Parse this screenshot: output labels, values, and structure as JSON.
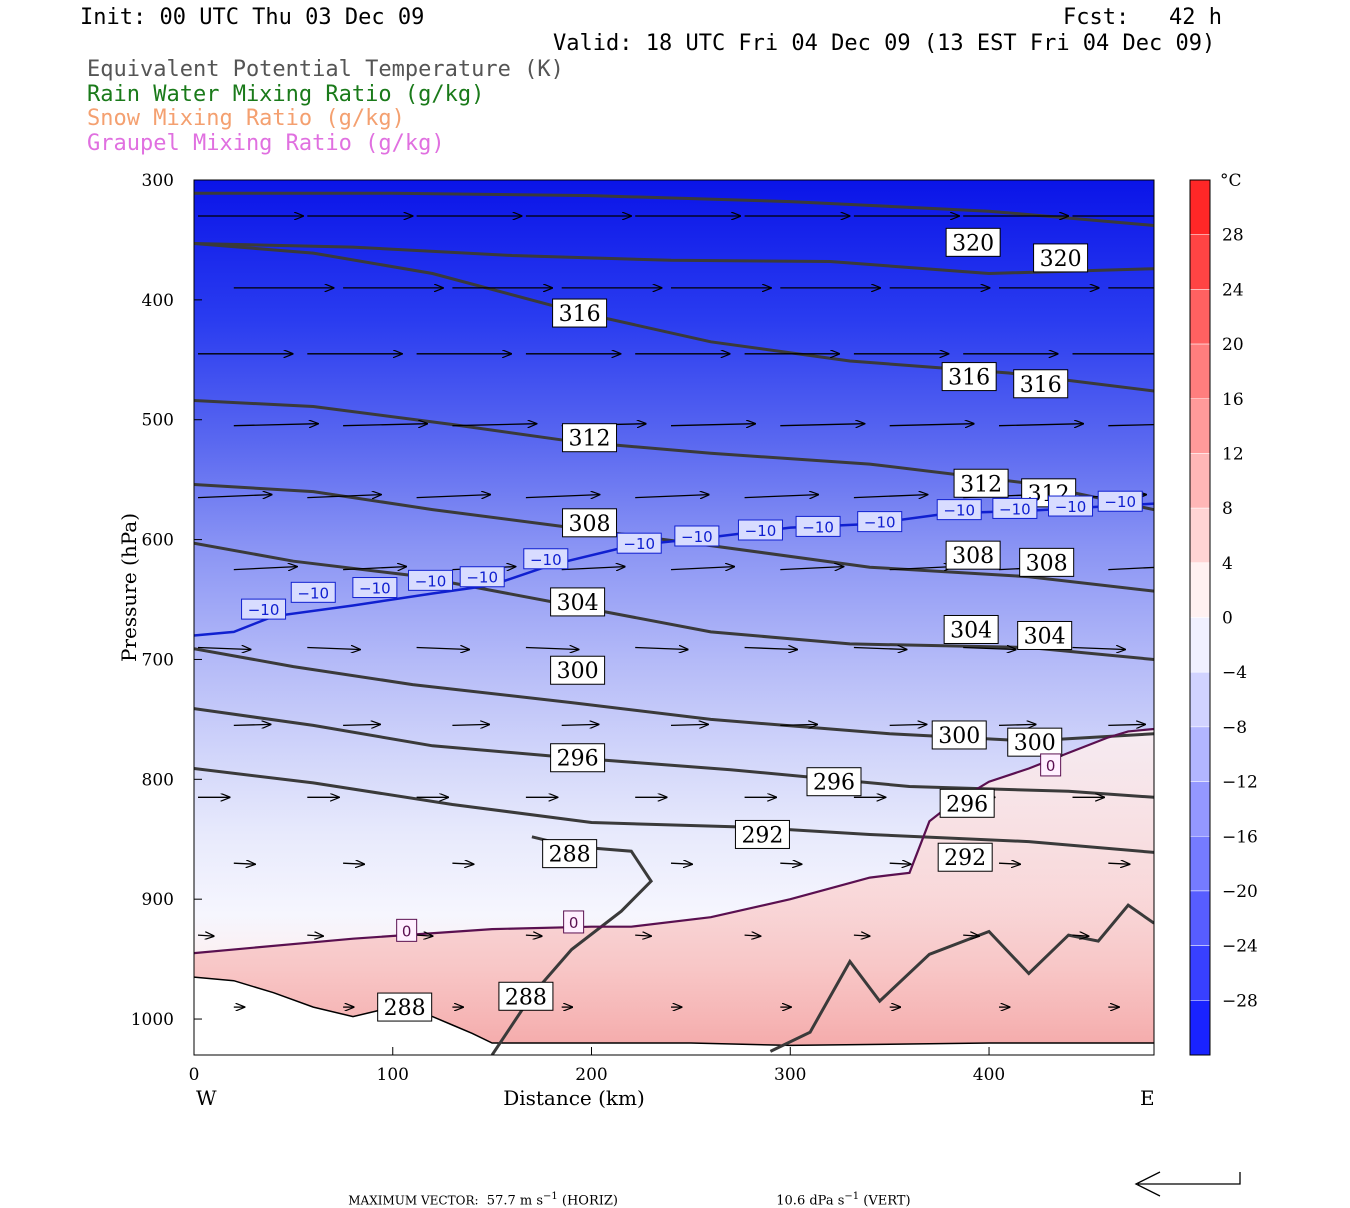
{
  "header": {
    "init": "Init: 00 UTC Thu 03 Dec 09",
    "fcst": "Fcst:   42 h",
    "valid": "Valid: 18 UTC Fri 04 Dec 09 (13 EST Fri 04 Dec 09)"
  },
  "legend": [
    {
      "label": "Equivalent Potential Temperature (K)",
      "color": "#555555"
    },
    {
      "label": "Rain Water Mixing Ratio (g/kg)",
      "color": "#1a7a1a"
    },
    {
      "label": "Snow Mixing Ratio (g/kg)",
      "color": "#f4a070"
    },
    {
      "label": "Graupel Mixing Ratio (g/kg)",
      "color": "#e070e0"
    }
  ],
  "chart_data": {
    "type": "cross-section",
    "xlabel": "Distance (km)",
    "ylabel": "Pressure (hPa)",
    "x_ticks": [
      0,
      100,
      200,
      300,
      400
    ],
    "x_range": [
      0,
      483
    ],
    "y_ticks": [
      300,
      400,
      500,
      600,
      700,
      800,
      900,
      1000
    ],
    "y_range": [
      300,
      1030
    ],
    "west_label": "W",
    "east_label": "E",
    "colorbar": {
      "unit": "°C",
      "ticks": [
        28,
        24,
        20,
        16,
        12,
        8,
        4,
        0,
        -4,
        -8,
        -12,
        -16,
        -20,
        -24,
        -28
      ],
      "range": [
        -32,
        32
      ]
    },
    "theta_e_contours": [
      {
        "value": 320,
        "points": [
          [
            0,
            311
          ],
          [
            100,
            311
          ],
          [
            200,
            313
          ],
          [
            300,
            318
          ],
          [
            400,
            326
          ],
          [
            483,
            338
          ]
        ]
      },
      {
        "value": 320,
        "points": [
          [
            0,
            353
          ],
          [
            80,
            356
          ],
          [
            160,
            363
          ],
          [
            240,
            367
          ],
          [
            320,
            368
          ],
          [
            400,
            378
          ],
          [
            483,
            374
          ]
        ]
      },
      {
        "value": 316,
        "points": [
          [
            0,
            353
          ],
          [
            60,
            361
          ],
          [
            120,
            378
          ],
          [
            190,
            409
          ],
          [
            260,
            435
          ],
          [
            330,
            451
          ],
          [
            410,
            461
          ],
          [
            483,
            476
          ]
        ]
      },
      {
        "value": 312,
        "points": [
          [
            0,
            484
          ],
          [
            60,
            489
          ],
          [
            130,
            504
          ],
          [
            190,
            518
          ],
          [
            260,
            528
          ],
          [
            340,
            537
          ],
          [
            420,
            553
          ],
          [
            483,
            575
          ]
        ]
      },
      {
        "value": 308,
        "points": [
          [
            0,
            554
          ],
          [
            60,
            560
          ],
          [
            120,
            575
          ],
          [
            190,
            590
          ],
          [
            260,
            605
          ],
          [
            340,
            623
          ],
          [
            420,
            631
          ],
          [
            483,
            643
          ]
        ]
      },
      {
        "value": 304,
        "points": [
          [
            0,
            603
          ],
          [
            50,
            618
          ],
          [
            110,
            630
          ],
          [
            190,
            655
          ],
          [
            260,
            677
          ],
          [
            330,
            687
          ],
          [
            420,
            690
          ],
          [
            483,
            700
          ]
        ]
      },
      {
        "value": 300,
        "points": [
          [
            0,
            691
          ],
          [
            50,
            706
          ],
          [
            110,
            721
          ],
          [
            190,
            736
          ],
          [
            260,
            750
          ],
          [
            350,
            762
          ],
          [
            420,
            768
          ],
          [
            483,
            762
          ]
        ]
      },
      {
        "value": 296,
        "points": [
          [
            0,
            741
          ],
          [
            60,
            755
          ],
          [
            120,
            772
          ],
          [
            190,
            782
          ],
          [
            270,
            792
          ],
          [
            360,
            806
          ],
          [
            440,
            810
          ],
          [
            483,
            815
          ]
        ]
      },
      {
        "value": 292,
        "points": [
          [
            0,
            791
          ],
          [
            60,
            803
          ],
          [
            130,
            821
          ],
          [
            200,
            836
          ],
          [
            280,
            840
          ],
          [
            340,
            846
          ],
          [
            420,
            852
          ],
          [
            483,
            861
          ]
        ]
      },
      {
        "value": 288,
        "points": [
          [
            150,
            1030
          ],
          [
            170,
            980
          ],
          [
            190,
            942
          ],
          [
            215,
            910
          ],
          [
            230,
            885
          ],
          [
            220,
            860
          ],
          [
            190,
            856
          ],
          [
            170,
            848
          ]
        ]
      },
      {
        "value": 288,
        "points": [
          [
            290,
            1027
          ],
          [
            310,
            1011
          ],
          [
            330,
            952
          ],
          [
            345,
            985
          ],
          [
            370,
            946
          ],
          [
            400,
            927
          ],
          [
            420,
            962
          ],
          [
            440,
            930
          ],
          [
            455,
            935
          ],
          [
            470,
            905
          ],
          [
            483,
            920
          ]
        ]
      }
    ],
    "contour_labels": [
      {
        "value": "320",
        "x": 392,
        "p": 352
      },
      {
        "value": "320",
        "x": 436,
        "p": 365
      },
      {
        "value": "316",
        "x": 194,
        "p": 411
      },
      {
        "value": "316",
        "x": 390,
        "p": 464
      },
      {
        "value": "316",
        "x": 426,
        "p": 470
      },
      {
        "value": "312",
        "x": 199,
        "p": 515
      },
      {
        "value": "312",
        "x": 396,
        "p": 553
      },
      {
        "value": "312",
        "x": 430,
        "p": 561
      },
      {
        "value": "308",
        "x": 199,
        "p": 586
      },
      {
        "value": "308",
        "x": 392,
        "p": 613
      },
      {
        "value": "308",
        "x": 429,
        "p": 619
      },
      {
        "value": "304",
        "x": 193,
        "p": 652
      },
      {
        "value": "304",
        "x": 391,
        "p": 675
      },
      {
        "value": "304",
        "x": 428,
        "p": 680
      },
      {
        "value": "300",
        "x": 193,
        "p": 709
      },
      {
        "value": "300",
        "x": 385,
        "p": 763
      },
      {
        "value": "300",
        "x": 423,
        "p": 769
      },
      {
        "value": "296",
        "x": 193,
        "p": 782
      },
      {
        "value": "296",
        "x": 322,
        "p": 802
      },
      {
        "value": "296",
        "x": 389,
        "p": 820
      },
      {
        "value": "292",
        "x": 286,
        "p": 846
      },
      {
        "value": "292",
        "x": 388,
        "p": 865
      },
      {
        "value": "288",
        "x": 189,
        "p": 862
      },
      {
        "value": "288",
        "x": 106,
        "p": 990
      },
      {
        "value": "288",
        "x": 167,
        "p": 981
      }
    ],
    "isotherm_minus10": {
      "points": [
        [
          0,
          680
        ],
        [
          20,
          677
        ],
        [
          40,
          664
        ],
        [
          80,
          655
        ],
        [
          120,
          645
        ],
        [
          150,
          638
        ],
        [
          180,
          621
        ],
        [
          220,
          605
        ],
        [
          260,
          598
        ],
        [
          300,
          590
        ],
        [
          340,
          587
        ],
        [
          380,
          578
        ],
        [
          420,
          576
        ],
        [
          483,
          570
        ]
      ],
      "labels": [
        [
          35,
          658
        ],
        [
          60,
          644
        ],
        [
          91,
          640
        ],
        [
          119,
          634
        ],
        [
          145,
          631
        ],
        [
          177,
          616
        ],
        [
          224,
          603
        ],
        [
          253,
          597
        ],
        [
          285,
          592
        ],
        [
          314,
          589
        ],
        [
          345,
          585
        ],
        [
          385,
          575
        ],
        [
          413,
          574
        ],
        [
          441,
          572
        ],
        [
          466,
          568
        ]
      ],
      "value": "−10"
    },
    "isotherm_zero": {
      "points": [
        [
          0,
          945
        ],
        [
          80,
          933
        ],
        [
          150,
          925
        ],
        [
          200,
          923
        ],
        [
          220,
          923
        ],
        [
          260,
          915
        ],
        [
          300,
          900
        ],
        [
          340,
          882
        ],
        [
          360,
          878
        ],
        [
          370,
          835
        ],
        [
          380,
          822
        ],
        [
          400,
          802
        ],
        [
          420,
          791
        ],
        [
          440,
          778
        ],
        [
          460,
          765
        ],
        [
          470,
          760
        ],
        [
          483,
          758
        ]
      ],
      "labels": [
        [
          107,
          926
        ],
        [
          191,
          919
        ],
        [
          431,
          788
        ]
      ],
      "value": "0"
    },
    "terrain": [
      [
        0,
        965
      ],
      [
        20,
        968
      ],
      [
        40,
        978
      ],
      [
        60,
        990
      ],
      [
        80,
        998
      ],
      [
        100,
        990
      ],
      [
        120,
        998
      ],
      [
        130,
        1005
      ],
      [
        140,
        1012
      ],
      [
        150,
        1020
      ],
      [
        200,
        1020
      ],
      [
        250,
        1020
      ],
      [
        300,
        1022
      ],
      [
        400,
        1020
      ],
      [
        483,
        1020
      ]
    ],
    "wind_arrows": [
      {
        "row": 330,
        "u": 1.0,
        "dp": 0
      },
      {
        "row": 390,
        "u": 0.95,
        "dp": 0
      },
      {
        "row": 445,
        "u": 0.9,
        "dp": 0
      },
      {
        "row": 505,
        "u": 0.8,
        "dp": -2
      },
      {
        "row": 565,
        "u": 0.7,
        "dp": -3
      },
      {
        "row": 625,
        "u": 0.6,
        "dp": -3
      },
      {
        "row": 690,
        "u": 0.5,
        "dp": 2
      },
      {
        "row": 755,
        "u": 0.35,
        "dp": -1
      },
      {
        "row": 815,
        "u": 0.3,
        "dp": 0
      },
      {
        "row": 870,
        "u": 0.2,
        "dp": 1
      },
      {
        "row": 930,
        "u": 0.15,
        "dp": 1
      },
      {
        "row": 990,
        "u": 0.1,
        "dp": 0
      }
    ]
  },
  "footer": {
    "max_vector_label": "MAXIMUM VECTOR:",
    "horiz_value": "57.7 m s",
    "horiz_exp": "−1",
    "horiz_unit": " (HORIZ)",
    "vert_value": "10.6 dPa s",
    "vert_exp": "−1",
    "vert_unit": " (VERT)"
  }
}
